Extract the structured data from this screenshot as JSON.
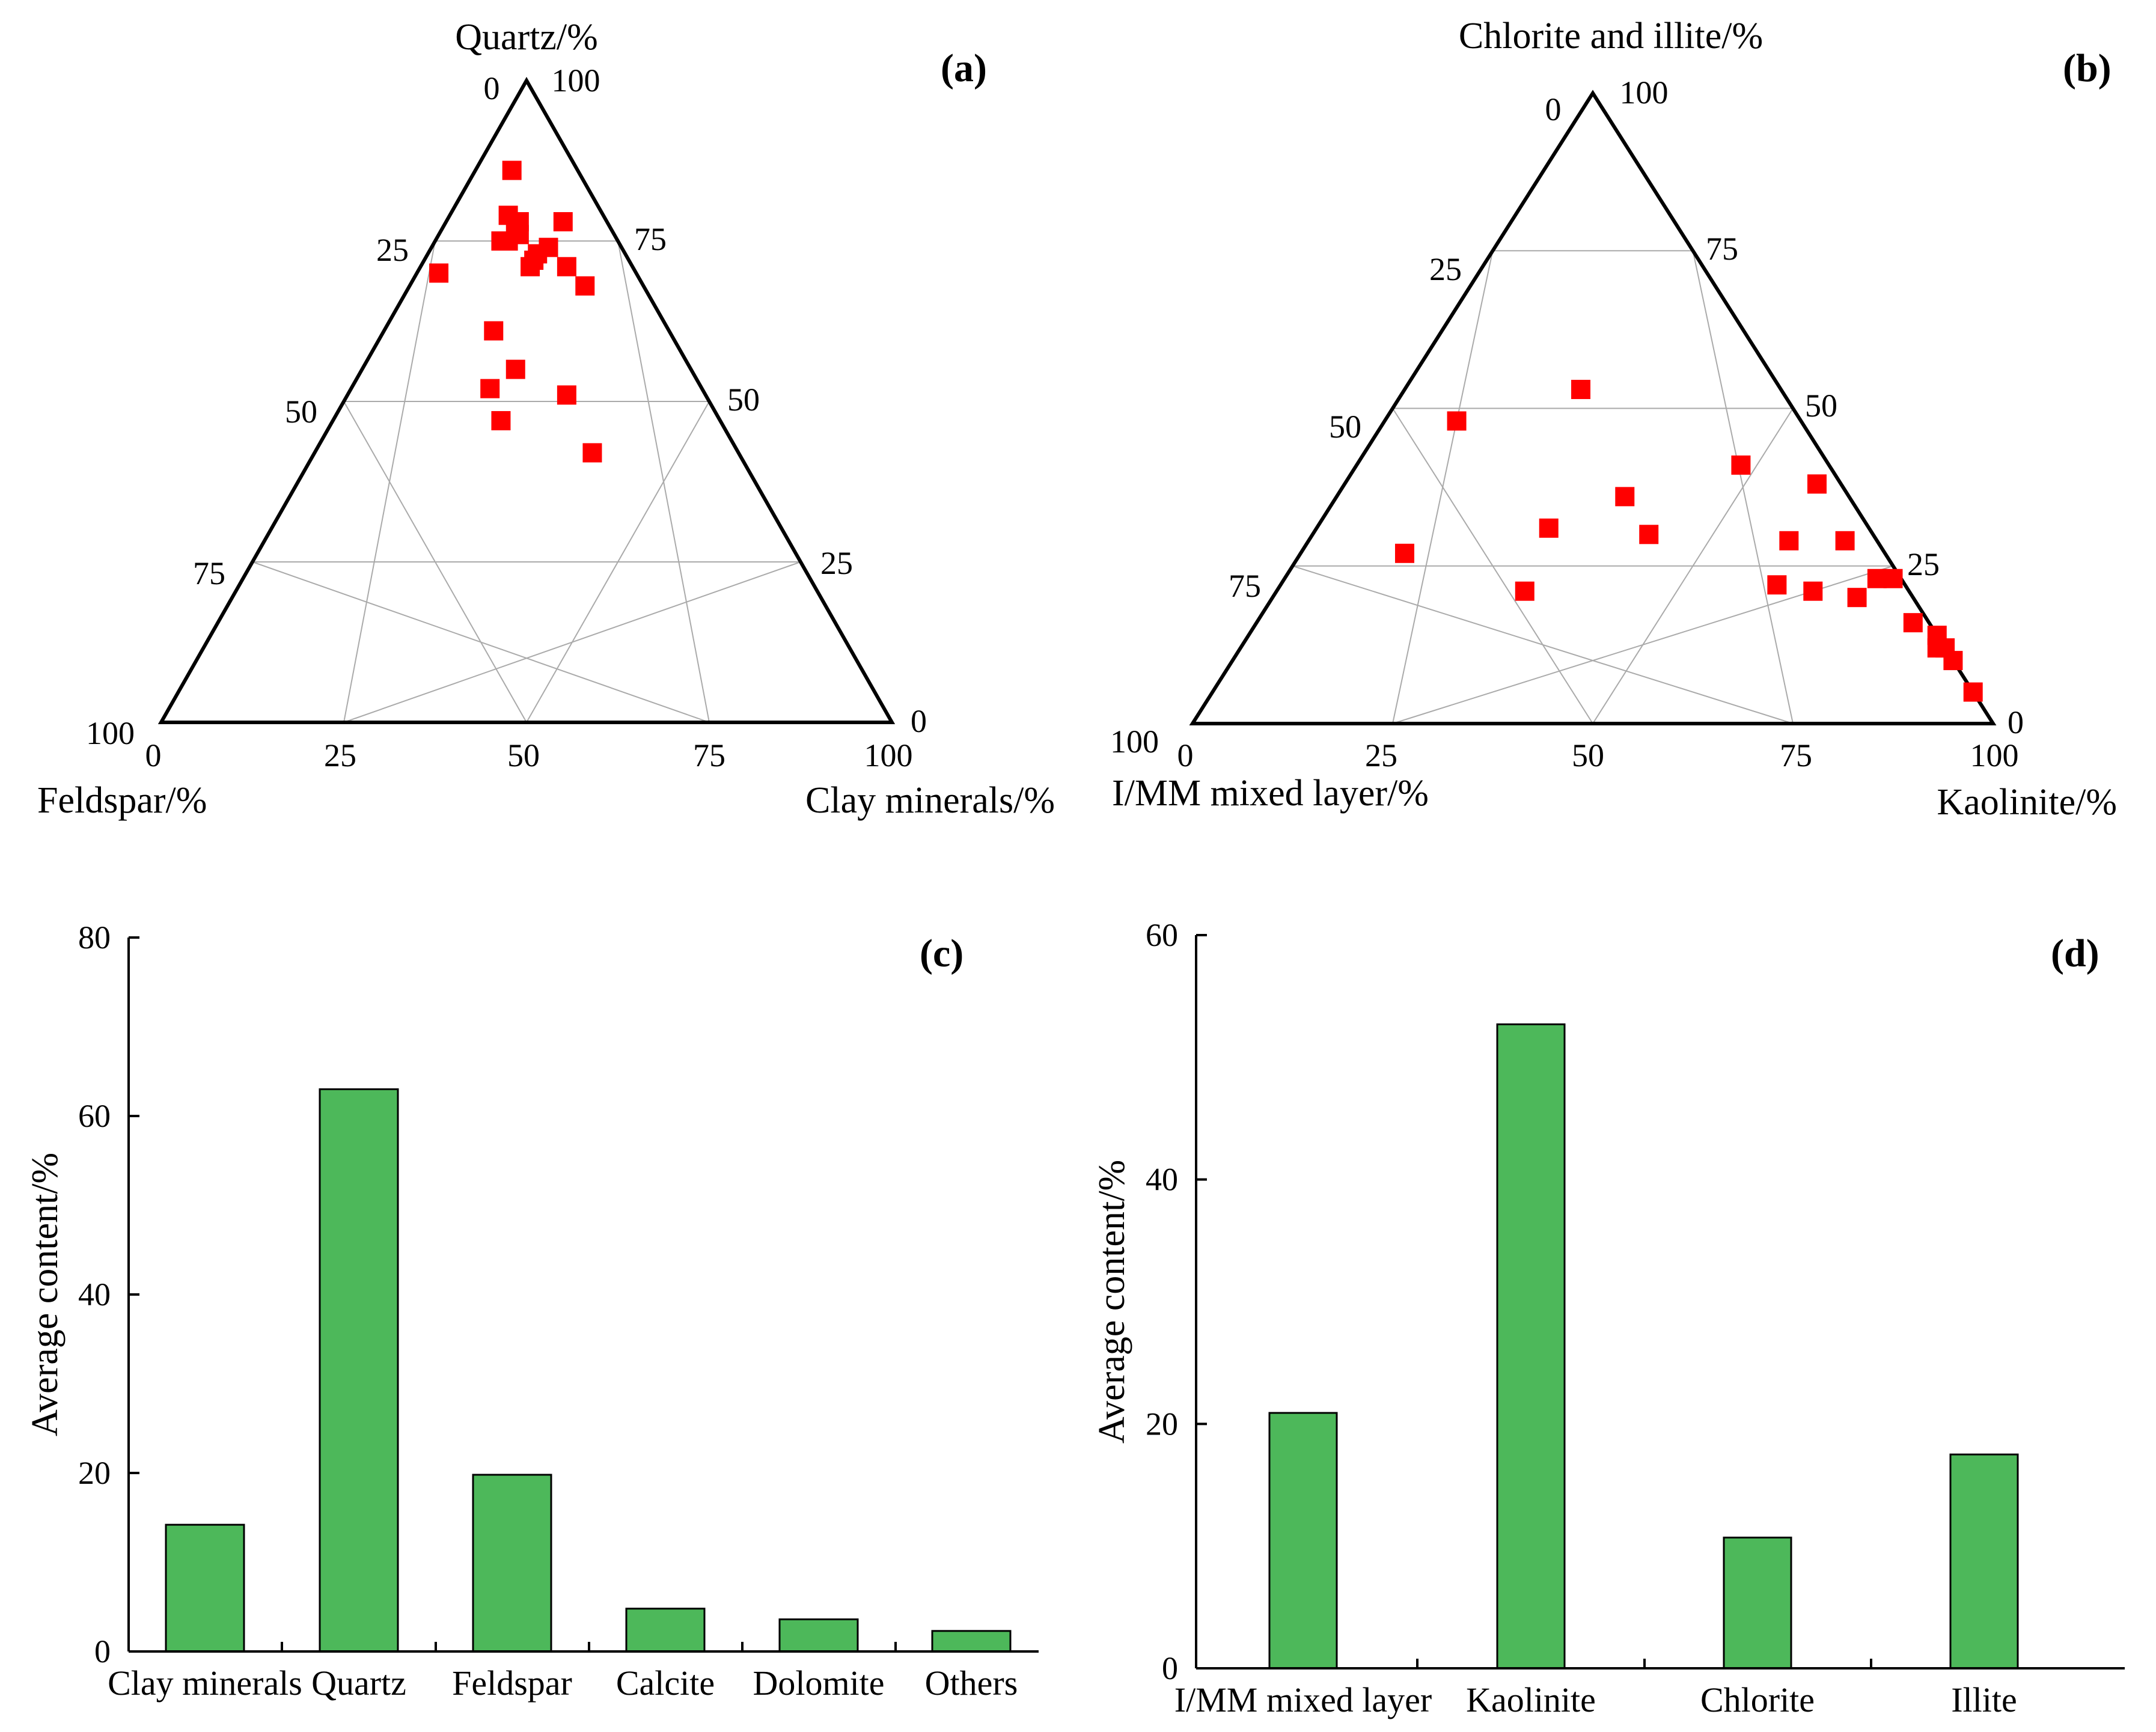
{
  "colors": {
    "marker": "#ff0000",
    "bar": "#4db85a",
    "grid": "#aaaaaa",
    "axis": "#000000"
  },
  "chart_data": [
    {
      "type": "ternary-scatter",
      "panel": "(a)",
      "top_label": "Quartz/%",
      "left_label": "Feldspar/%",
      "right_label": "Clay minerals/%",
      "top_tick_labels": [
        "0",
        "100"
      ],
      "left_tick_labels": [
        "25",
        "50",
        "75",
        "100"
      ],
      "right_tick_labels": [
        "75",
        "50",
        "25",
        "0"
      ],
      "bottom_tick_labels": [
        "0",
        "25",
        "50",
        "75",
        "100"
      ],
      "grid_step": 25,
      "points": [
        {
          "quartz": 86,
          "feldspar": 9,
          "clay": 5
        },
        {
          "quartz": 79,
          "feldspar": 13,
          "clay": 8
        },
        {
          "quartz": 78,
          "feldspar": 12,
          "clay": 10
        },
        {
          "quartz": 77,
          "feldspar": 13,
          "clay": 10
        },
        {
          "quartz": 78,
          "feldspar": 6,
          "clay": 16
        },
        {
          "quartz": 76,
          "feldspar": 13,
          "clay": 11
        },
        {
          "quartz": 75,
          "feldspar": 16,
          "clay": 9
        },
        {
          "quartz": 75,
          "feldspar": 15,
          "clay": 10
        },
        {
          "quartz": 74,
          "feldspar": 10,
          "clay": 16
        },
        {
          "quartz": 73,
          "feldspar": 12,
          "clay": 15
        },
        {
          "quartz": 71,
          "feldspar": 9,
          "clay": 20
        },
        {
          "quartz": 72,
          "feldspar": 13,
          "clay": 15
        },
        {
          "quartz": 71,
          "feldspar": 14,
          "clay": 15
        },
        {
          "quartz": 70,
          "feldspar": 27,
          "clay": 3
        },
        {
          "quartz": 68,
          "feldspar": 8,
          "clay": 24
        },
        {
          "quartz": 61,
          "feldspar": 24,
          "clay": 15
        },
        {
          "quartz": 55,
          "feldspar": 24,
          "clay": 21
        },
        {
          "quartz": 52,
          "feldspar": 29,
          "clay": 19
        },
        {
          "quartz": 51,
          "feldspar": 19,
          "clay": 30
        },
        {
          "quartz": 47,
          "feldspar": 30,
          "clay": 23
        },
        {
          "quartz": 42,
          "feldspar": 20,
          "clay": 38
        }
      ]
    },
    {
      "type": "ternary-scatter",
      "panel": "(b)",
      "top_label": "Chlorite and illite/%",
      "left_label": "I/MM mixed layer/%",
      "right_label": "Kaolinite/%",
      "top_tick_labels": [
        "0",
        "100"
      ],
      "left_tick_labels": [
        "25",
        "50",
        "75",
        "100"
      ],
      "right_tick_labels": [
        "75",
        "50",
        "25",
        "0"
      ],
      "bottom_tick_labels": [
        "0",
        "25",
        "50",
        "75",
        "100"
      ],
      "grid_step": 25,
      "points": [
        {
          "chlorite_illite": 53,
          "imm": 25,
          "kaolinite": 22
        },
        {
          "chlorite_illite": 48,
          "imm": 43,
          "kaolinite": 9
        },
        {
          "chlorite_illite": 41,
          "imm": 11,
          "kaolinite": 48
        },
        {
          "chlorite_illite": 38,
          "imm": 3,
          "kaolinite": 59
        },
        {
          "chlorite_illite": 36,
          "imm": 28,
          "kaolinite": 36
        },
        {
          "chlorite_illite": 31,
          "imm": 40,
          "kaolinite": 29
        },
        {
          "chlorite_illite": 30,
          "imm": 28,
          "kaolinite": 42
        },
        {
          "chlorite_illite": 29,
          "imm": 11,
          "kaolinite": 60
        },
        {
          "chlorite_illite": 29,
          "imm": 4,
          "kaolinite": 67
        },
        {
          "chlorite_illite": 27,
          "imm": 60,
          "kaolinite": 13
        },
        {
          "chlorite_illite": 23,
          "imm": 3,
          "kaolinite": 74
        },
        {
          "chlorite_illite": 23,
          "imm": 1,
          "kaolinite": 76
        },
        {
          "chlorite_illite": 22,
          "imm": 16,
          "kaolinite": 62
        },
        {
          "chlorite_illite": 21,
          "imm": 12,
          "kaolinite": 67
        },
        {
          "chlorite_illite": 21,
          "imm": 48,
          "kaolinite": 31
        },
        {
          "chlorite_illite": 20,
          "imm": 7,
          "kaolinite": 73
        },
        {
          "chlorite_illite": 16,
          "imm": 2,
          "kaolinite": 82
        },
        {
          "chlorite_illite": 14,
          "imm": 0,
          "kaolinite": 86
        },
        {
          "chlorite_illite": 12,
          "imm": 1,
          "kaolinite": 87
        },
        {
          "chlorite_illite": 12,
          "imm": 0,
          "kaolinite": 88
        },
        {
          "chlorite_illite": 10,
          "imm": 0,
          "kaolinite": 90
        },
        {
          "chlorite_illite": 5,
          "imm": 0,
          "kaolinite": 95
        }
      ]
    },
    {
      "type": "bar",
      "panel": "(c)",
      "ylabel": "Average content/%",
      "xlabel": "",
      "ylim": [
        0,
        80
      ],
      "yticks": [
        "0",
        "20",
        "40",
        "60",
        "80"
      ],
      "categories": [
        "Clay minerals",
        "Quartz",
        "Feldspar",
        "Calcite",
        "Dolomite",
        "Others"
      ],
      "values": [
        14.2,
        63.0,
        19.8,
        4.8,
        3.6,
        2.3
      ]
    },
    {
      "type": "bar",
      "panel": "(d)",
      "ylabel": "Average content/%",
      "xlabel": "",
      "ylim": [
        0,
        60
      ],
      "yticks": [
        "0",
        "20",
        "40",
        "60"
      ],
      "categories": [
        "I/MM mixed layer",
        "Kaolinite",
        "Chlorite",
        "Illite"
      ],
      "values": [
        20.9,
        52.7,
        10.7,
        17.5
      ]
    }
  ]
}
